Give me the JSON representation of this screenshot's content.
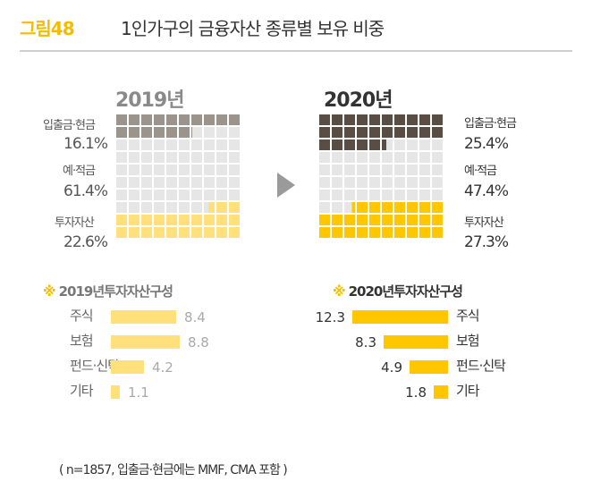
{
  "header": {
    "label": "그림48",
    "title": "1인가구의 금융자산 종류별 보유 비중"
  },
  "colors": {
    "accent": "#f2bd00",
    "cash_2019": "#9b948c",
    "cash_2020": "#5a4e44",
    "savings": "#e6e6e6",
    "invest_2019": "#ffe07a",
    "invest_2020": "#ffc700"
  },
  "chart_data": [
    {
      "type": "waffle",
      "year": "2019년",
      "total_cells": 100,
      "segments": [
        {
          "name": "입출금·현금",
          "value": 16.1,
          "value_label": "16.1%"
        },
        {
          "name": "예·적금",
          "value": 61.4,
          "value_label": "61.4%"
        },
        {
          "name": "투자자산",
          "value": 22.6,
          "value_label": "22.6%"
        }
      ]
    },
    {
      "type": "waffle",
      "year": "2020년",
      "total_cells": 100,
      "segments": [
        {
          "name": "입출금·현금",
          "value": 25.4,
          "value_label": "25.4%"
        },
        {
          "name": "예·적금",
          "value": 47.4,
          "value_label": "47.4%"
        },
        {
          "name": "투자자산",
          "value": 27.3,
          "value_label": "27.3%"
        }
      ]
    },
    {
      "type": "bar",
      "title": "2019년투자자산구성",
      "mark": "※",
      "categories": [
        "주식",
        "보험",
        "펀드·신탁",
        "기타"
      ],
      "values": [
        8.4,
        8.8,
        4.2,
        1.1
      ],
      "value_labels": [
        "8.4",
        "8.8",
        "4.2",
        "1.1"
      ]
    },
    {
      "type": "bar",
      "title": "2020년투자자산구성",
      "mark": "※",
      "categories": [
        "주식",
        "보험",
        "펀드·신탁",
        "기타"
      ],
      "values": [
        12.3,
        8.3,
        4.9,
        1.8
      ],
      "value_labels": [
        "12.3",
        "8.3",
        "4.9",
        "1.8"
      ]
    }
  ],
  "note": "( n=1857, 입출금·현금에는 MMF, CMA 포함 )"
}
